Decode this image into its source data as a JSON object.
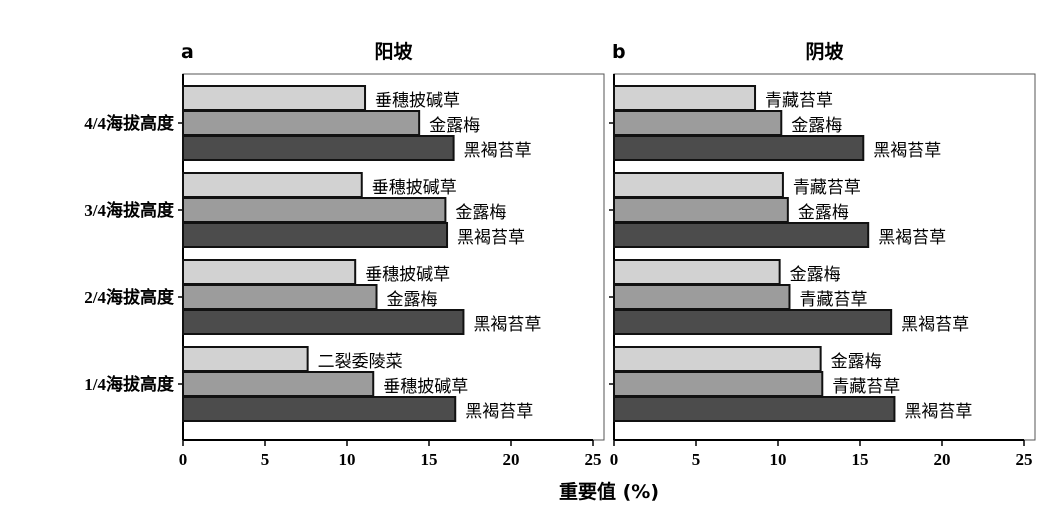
{
  "chart_data": [
    {
      "type": "bar",
      "orientation": "horizontal",
      "panel": "a",
      "title": "阳坡",
      "categories": [
        "4/4海拔高度",
        "3/4海拔高度",
        "2/4海拔高度",
        "1/4海拔高度"
      ],
      "bars": [
        [
          {
            "name": "垂穗披碱草",
            "value": 11.1
          },
          {
            "name": "金露梅",
            "value": 14.4
          },
          {
            "name": "黑褐苔草",
            "value": 16.5
          }
        ],
        [
          {
            "name": "垂穗披碱草",
            "value": 10.9
          },
          {
            "name": "金露梅",
            "value": 16.0
          },
          {
            "name": "黑褐苔草",
            "value": 16.1
          }
        ],
        [
          {
            "name": "垂穗披碱草",
            "value": 10.5
          },
          {
            "name": "金露梅",
            "value": 11.8
          },
          {
            "name": "黑褐苔草",
            "value": 17.1
          }
        ],
        [
          {
            "name": "二裂委陵菜",
            "value": 7.6
          },
          {
            "name": "垂穗披碱草",
            "value": 11.6
          },
          {
            "name": "黑褐苔草",
            "value": 16.6
          }
        ]
      ],
      "xlim": [
        0,
        25
      ],
      "xticks": [
        "0",
        "5",
        "10",
        "15",
        "20",
        "25"
      ]
    },
    {
      "type": "bar",
      "orientation": "horizontal",
      "panel": "b",
      "title": "阴坡",
      "categories": [
        "4/4海拔高度",
        "3/4海拔高度",
        "2/4海拔高度",
        "1/4海拔高度"
      ],
      "bars": [
        [
          {
            "name": "青藏苔草",
            "value": 8.6
          },
          {
            "name": "金露梅",
            "value": 10.2
          },
          {
            "name": "黑褐苔草",
            "value": 15.2
          }
        ],
        [
          {
            "name": "青藏苔草",
            "value": 10.3
          },
          {
            "name": "金露梅",
            "value": 10.6
          },
          {
            "name": "黑褐苔草",
            "value": 15.5
          }
        ],
        [
          {
            "name": "金露梅",
            "value": 10.1
          },
          {
            "name": "青藏苔草",
            "value": 10.7
          },
          {
            "name": "黑褐苔草",
            "value": 16.9
          }
        ],
        [
          {
            "name": "金露梅",
            "value": 12.6
          },
          {
            "name": "青藏苔草",
            "value": 12.7
          },
          {
            "name": "黑褐苔草",
            "value": 17.1
          }
        ]
      ],
      "xlim": [
        0,
        25
      ],
      "xticks": [
        "0",
        "5",
        "10",
        "15",
        "20",
        "25"
      ]
    }
  ],
  "xlabel": "重要值 (%)",
  "colors": [
    "#d2d2d2",
    "#9c9c9c",
    "#4c4c4c"
  ]
}
